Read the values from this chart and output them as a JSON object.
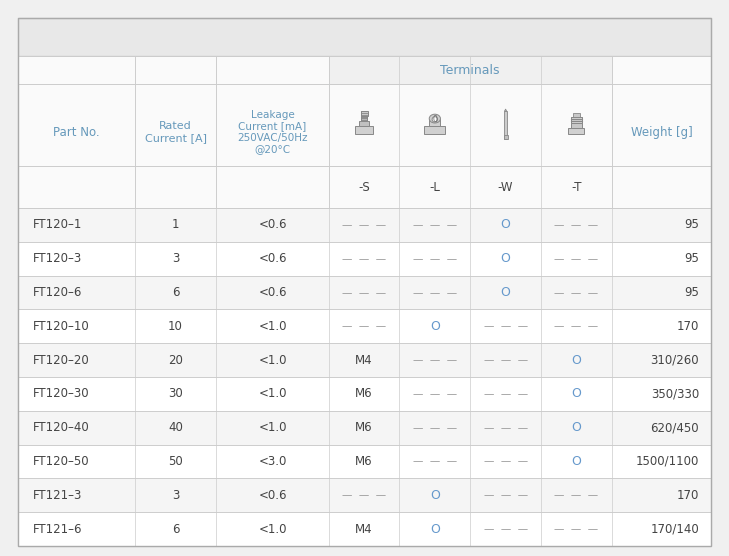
{
  "rows": [
    [
      "FT120–1",
      "1",
      "<0.6",
      "---",
      "---",
      "O",
      "---",
      "95"
    ],
    [
      "FT120–3",
      "3",
      "<0.6",
      "---",
      "---",
      "O",
      "---",
      "95"
    ],
    [
      "FT120–6",
      "6",
      "<0.6",
      "---",
      "---",
      "O",
      "---",
      "95"
    ],
    [
      "FT120–10",
      "10",
      "<1.0",
      "---",
      "O",
      "---",
      "---",
      "170"
    ],
    [
      "FT120–20",
      "20",
      "<1.0",
      "M4",
      "---",
      "---",
      "O",
      "310/260"
    ],
    [
      "FT120–30",
      "30",
      "<1.0",
      "M6",
      "---",
      "---",
      "O",
      "350/330"
    ],
    [
      "FT120–40",
      "40",
      "<1.0",
      "M6",
      "---",
      "---",
      "O",
      "620/450"
    ],
    [
      "FT120–50",
      "50",
      "<3.0",
      "M6",
      "---",
      "---",
      "O",
      "1500/1100"
    ],
    [
      "FT121–3",
      "3",
      "<0.6",
      "---",
      "O",
      "---",
      "---",
      "170"
    ],
    [
      "FT121–6",
      "6",
      "<1.0",
      "M4",
      "O",
      "---",
      "---",
      "170/140"
    ]
  ],
  "col_weights": [
    1.35,
    0.95,
    1.3,
    0.82,
    0.82,
    0.82,
    0.82,
    1.15
  ],
  "top_gray": "#e8e8e8",
  "row_even": "#f5f5f5",
  "row_odd": "#ffffff",
  "header_bg": "#f0f0f0",
  "terminals_bg": "#f0f0f0",
  "grid_color": "#cccccc",
  "text_dark": "#444444",
  "text_blue": "#6699bb",
  "text_gray": "#888888",
  "text_circle": "#6699cc",
  "text_dash": "#999999",
  "watermark_color": "#e8ebef"
}
